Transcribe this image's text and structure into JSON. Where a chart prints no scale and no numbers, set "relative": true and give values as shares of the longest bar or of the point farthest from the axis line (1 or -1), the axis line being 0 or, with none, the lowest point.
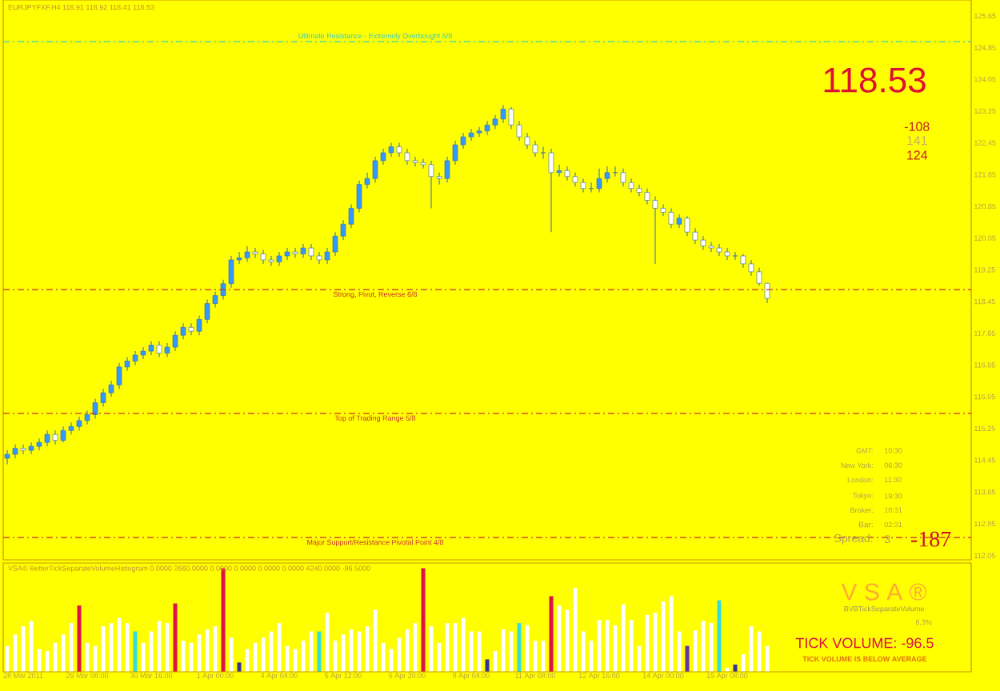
{
  "chart_data": [
    {
      "type": "candlestick",
      "title": "EURJPYFXF,H4 118.91 118.92 118.41 118.53",
      "tick_labels": "y",
      "categories": [
        null,
        null,
        null,
        null,
        null,
        null,
        null,
        null,
        null,
        null,
        null,
        null,
        null,
        null,
        null,
        null,
        null,
        null,
        null,
        null,
        null,
        null,
        null,
        null,
        null,
        null,
        null,
        null,
        null,
        null,
        null,
        null,
        null,
        null,
        null,
        null,
        null,
        null,
        null,
        null,
        null,
        null,
        null,
        null,
        null,
        null,
        null,
        null,
        null,
        null,
        null,
        null,
        null,
        null,
        null,
        null,
        null,
        null,
        null,
        null,
        null,
        null,
        null,
        null,
        null,
        null,
        null,
        null,
        null,
        null,
        null,
        null,
        null,
        null,
        null,
        null,
        null,
        null,
        null,
        null,
        null,
        null,
        null,
        null,
        null,
        null,
        null,
        null,
        null,
        null,
        null,
        null,
        null,
        null,
        null,
        null,
        null,
        null,
        null,
        null,
        null,
        null,
        null,
        null,
        null,
        null,
        null,
        null,
        null,
        null,
        null,
        null,
        null,
        null,
        null,
        null,
        null,
        null,
        null,
        null,
        null
      ],
      "ohlc": [
        [
          114.5,
          114.7,
          114.35,
          114.6
        ],
        [
          114.6,
          114.85,
          114.5,
          114.75
        ],
        [
          114.75,
          114.85,
          114.6,
          114.7
        ],
        [
          114.7,
          114.9,
          114.6,
          114.8
        ],
        [
          114.8,
          115.0,
          114.7,
          114.9
        ],
        [
          114.9,
          115.2,
          114.8,
          115.1
        ],
        [
          115.1,
          115.2,
          114.85,
          114.95
        ],
        [
          114.95,
          115.3,
          114.9,
          115.2
        ],
        [
          115.2,
          115.4,
          115.1,
          115.3
        ],
        [
          115.3,
          115.55,
          115.2,
          115.45
        ],
        [
          115.45,
          115.7,
          115.35,
          115.6
        ],
        [
          115.6,
          116.0,
          115.5,
          115.9
        ],
        [
          115.9,
          116.25,
          115.8,
          116.15
        ],
        [
          116.15,
          116.45,
          116.05,
          116.35
        ],
        [
          116.35,
          116.9,
          116.25,
          116.8
        ],
        [
          116.8,
          117.05,
          116.7,
          116.95
        ],
        [
          116.95,
          117.2,
          116.85,
          117.1
        ],
        [
          117.1,
          117.3,
          117.0,
          117.2
        ],
        [
          117.2,
          117.45,
          117.1,
          117.35
        ],
        [
          117.35,
          117.45,
          117.05,
          117.15
        ],
        [
          117.15,
          117.4,
          117.05,
          117.3
        ],
        [
          117.3,
          117.7,
          117.2,
          117.6
        ],
        [
          117.6,
          117.9,
          117.5,
          117.8
        ],
        [
          117.8,
          117.9,
          117.6,
          117.7
        ],
        [
          117.7,
          118.1,
          117.6,
          118.0
        ],
        [
          118.0,
          118.5,
          117.9,
          118.4
        ],
        [
          118.4,
          118.7,
          118.3,
          118.6
        ],
        [
          118.6,
          119.0,
          118.5,
          118.9
        ],
        [
          118.9,
          119.6,
          118.8,
          119.5
        ],
        [
          119.5,
          119.7,
          119.4,
          119.55
        ],
        [
          119.55,
          119.85,
          119.45,
          119.7
        ],
        [
          119.7,
          119.8,
          119.55,
          119.65
        ],
        [
          119.65,
          119.75,
          119.4,
          119.5
        ],
        [
          119.5,
          119.6,
          119.35,
          119.45
        ],
        [
          119.45,
          119.7,
          119.35,
          119.6
        ],
        [
          119.6,
          119.8,
          119.5,
          119.7
        ],
        [
          119.7,
          119.8,
          119.55,
          119.65
        ],
        [
          119.65,
          119.9,
          119.55,
          119.8
        ],
        [
          119.8,
          119.9,
          119.5,
          119.6
        ],
        [
          119.6,
          119.7,
          119.4,
          119.5
        ],
        [
          119.5,
          119.8,
          119.4,
          119.7
        ],
        [
          119.7,
          120.2,
          119.6,
          120.1
        ],
        [
          120.1,
          120.5,
          120.0,
          120.4
        ],
        [
          120.4,
          120.9,
          120.3,
          120.8
        ],
        [
          120.8,
          121.5,
          120.7,
          121.4
        ],
        [
          121.4,
          121.7,
          121.3,
          121.55
        ],
        [
          121.55,
          122.1,
          121.45,
          122.0
        ],
        [
          122.0,
          122.3,
          121.9,
          122.2
        ],
        [
          122.2,
          122.45,
          122.1,
          122.35
        ],
        [
          122.35,
          122.45,
          122.1,
          122.2
        ],
        [
          122.2,
          122.3,
          121.9,
          122.0
        ],
        [
          122.0,
          122.1,
          121.85,
          121.95
        ],
        [
          121.95,
          122.05,
          121.8,
          121.9
        ],
        [
          121.9,
          122.0,
          120.8,
          121.6
        ],
        [
          121.6,
          121.7,
          121.4,
          121.55
        ],
        [
          121.55,
          122.1,
          121.45,
          122.0
        ],
        [
          122.0,
          122.5,
          121.9,
          122.4
        ],
        [
          122.4,
          122.7,
          122.3,
          122.6
        ],
        [
          122.6,
          122.8,
          122.5,
          122.7
        ],
        [
          122.7,
          122.85,
          122.6,
          122.75
        ],
        [
          122.75,
          123.0,
          122.65,
          122.9
        ],
        [
          122.9,
          123.15,
          122.8,
          123.05
        ],
        [
          123.05,
          123.4,
          122.95,
          123.3
        ],
        [
          123.3,
          123.35,
          122.8,
          122.9
        ],
        [
          122.9,
          123.0,
          122.5,
          122.6
        ],
        [
          122.6,
          122.7,
          122.3,
          122.4
        ],
        [
          122.4,
          122.5,
          122.1,
          122.2
        ],
        [
          122.2,
          122.35,
          122.05,
          122.2
        ],
        [
          122.2,
          122.3,
          120.2,
          121.7
        ],
        [
          121.7,
          121.9,
          121.6,
          121.75
        ],
        [
          121.75,
          121.85,
          121.5,
          121.6
        ],
        [
          121.6,
          121.7,
          121.35,
          121.45
        ],
        [
          121.45,
          121.55,
          121.2,
          121.3
        ],
        [
          121.3,
          121.45,
          121.2,
          121.3
        ],
        [
          121.3,
          121.8,
          121.2,
          121.55
        ],
        [
          121.55,
          121.85,
          121.45,
          121.7
        ],
        [
          121.7,
          121.85,
          121.6,
          121.7
        ],
        [
          121.7,
          121.8,
          121.35,
          121.45
        ],
        [
          121.45,
          121.55,
          121.2,
          121.3
        ],
        [
          121.3,
          121.4,
          121.1,
          121.2
        ],
        [
          121.2,
          121.3,
          120.9,
          121.0
        ],
        [
          121.0,
          121.1,
          119.4,
          120.8
        ],
        [
          120.8,
          120.9,
          120.6,
          120.7
        ],
        [
          120.7,
          120.8,
          120.3,
          120.4
        ],
        [
          120.4,
          120.65,
          120.3,
          120.55
        ],
        [
          120.55,
          120.6,
          120.1,
          120.2
        ],
        [
          120.2,
          120.3,
          119.9,
          120.0
        ],
        [
          120.0,
          120.1,
          119.75,
          119.85
        ],
        [
          119.85,
          119.95,
          119.7,
          119.8
        ],
        [
          119.8,
          119.9,
          119.6,
          119.7
        ],
        [
          119.7,
          119.8,
          119.5,
          119.6
        ],
        [
          119.6,
          119.7,
          119.5,
          119.6
        ],
        [
          119.6,
          119.65,
          119.3,
          119.4
        ],
        [
          119.4,
          119.5,
          119.1,
          119.2
        ],
        [
          119.2,
          119.3,
          118.85,
          118.91
        ],
        [
          118.91,
          118.92,
          118.41,
          118.53
        ],
        null,
        null,
        null,
        null,
        null,
        null,
        null,
        null,
        null,
        null,
        null,
        null,
        null,
        null,
        null,
        null,
        null,
        null,
        null,
        null,
        null,
        null,
        null,
        null,
        null
      ],
      "ylim": [
        111.94,
        126.05
      ],
      "yticks": [
        112.05,
        112.85,
        113.65,
        114.45,
        115.25,
        116.05,
        116.85,
        117.65,
        118.45,
        119.25,
        120.05,
        120.85,
        121.65,
        122.45,
        123.25,
        124.05,
        124.85,
        125.65
      ],
      "ref_lines": [
        {
          "axis": "y",
          "value": 125.0,
          "label": "Ultimate Resistance - Extremely Overbought 8/8",
          "color": "#33cccc",
          "line_style": "dashed"
        },
        {
          "axis": "y",
          "value": 118.75,
          "label": "Strong, Pivot, Reverse 6/8",
          "color": "#cc3333",
          "line_style": "dashed"
        },
        {
          "axis": "y",
          "value": 115.63,
          "label": "Top of Trading Range 5/8",
          "color": "#cc3333",
          "line_style": "dashed"
        },
        {
          "axis": "y",
          "value": 112.5,
          "label": "Major Support/Resistance Pivotal Point 4/8",
          "color": "#cc3333",
          "line_style": "dashed"
        }
      ],
      "annotations": [
        "118.53",
        "-108",
        "141",
        "124",
        "GMT:",
        "10:30",
        "New York:",
        "06:30",
        "London:",
        "11:30",
        "Tokyo:",
        "19:30",
        "Broker:",
        "10:31",
        "Bar:",
        "02:31",
        "Spread:",
        "3",
        "-187"
      ]
    },
    {
      "type": "bar",
      "relative": true,
      "tick_labels": "x",
      "title": "VSA© BetterTickSeparateVolumeHistogram 0.0000 2660.0000 0.0000 0.0000 0.0000 0.0000 4240.0000 -96.5000",
      "categories": [
        null,
        null,
        "28 Mar 2011",
        null,
        null,
        null,
        null,
        null,
        null,
        null,
        "29 Mar 08:00",
        null,
        null,
        null,
        null,
        null,
        null,
        null,
        "30 Mar 16:00",
        null,
        null,
        null,
        null,
        null,
        null,
        null,
        "1 Apr 00:00",
        null,
        null,
        null,
        null,
        null,
        null,
        null,
        "4 Apr 04:00",
        null,
        null,
        null,
        null,
        null,
        null,
        null,
        "5 Apr 12:00",
        null,
        null,
        null,
        null,
        null,
        null,
        null,
        "6 Apr 20:00",
        null,
        null,
        null,
        null,
        null,
        null,
        null,
        "8 Apr 04:00",
        null,
        null,
        null,
        null,
        null,
        null,
        null,
        "11 Apr 08:00",
        null,
        null,
        null,
        null,
        null,
        null,
        null,
        "12 Apr 16:00",
        null,
        null,
        null,
        null,
        null,
        null,
        null,
        "14 Apr 00:00",
        null,
        null,
        null,
        null,
        null,
        null,
        null,
        "15 Apr 08:00",
        null,
        null,
        null,
        null,
        null,
        null,
        null,
        null,
        null,
        null,
        null,
        null,
        null,
        null,
        null,
        null,
        null,
        null,
        null,
        null,
        null,
        null,
        null,
        null,
        null,
        null,
        null,
        null,
        null,
        null
      ],
      "values": [
        0.25,
        0.36,
        0.44,
        0.49,
        0.22,
        0.2,
        0.28,
        0.36,
        0.47,
        0.64,
        0.28,
        0.25,
        0.44,
        0.47,
        0.52,
        0.47,
        0.39,
        0.28,
        0.39,
        0.49,
        0.47,
        0.66,
        0.3,
        0.28,
        0.36,
        0.41,
        0.44,
        1,
        0.33,
        0.09,
        0.22,
        0.28,
        0.33,
        0.39,
        0.47,
        0.25,
        0.22,
        0.3,
        0.39,
        0.39,
        0.57,
        0.3,
        0.36,
        0.41,
        0.39,
        0.44,
        0.6,
        0.28,
        0.22,
        0.33,
        0.41,
        0.47,
        1,
        0.44,
        0.28,
        0.47,
        0.47,
        0.52,
        0.39,
        0.39,
        0.12,
        0.2,
        0.41,
        0.39,
        0.47,
        0.45,
        0.3,
        0.3,
        0.73,
        0.64,
        0.6,
        0.81,
        0.39,
        0.3,
        0.5,
        0.5,
        0.45,
        0.65,
        0.5,
        0.25,
        0.55,
        0.57,
        0.68,
        0.73,
        0.39,
        0.25,
        0.4,
        0.49,
        0.47,
        0.69,
        0.04,
        0.07,
        0.17,
        0.44,
        0.39,
        0.25,
        null,
        null,
        null,
        null,
        null,
        null,
        null,
        null,
        null,
        null,
        null,
        null,
        null,
        null,
        null,
        null,
        null,
        null,
        null,
        null,
        null,
        null,
        null,
        null,
        null
      ],
      "colors": [
        "#ffffff",
        "#ffffff",
        "#ffffff",
        "#ffffff",
        "#ffffff",
        "#ffffff",
        "#ffffff",
        "#ffffff",
        "#ffffff",
        "#dd1144",
        "#ffffff",
        "#ffffff",
        "#ffffff",
        "#ffffff",
        "#ffffff",
        "#ffffff",
        "#33dddd",
        "#ffffff",
        "#ffffff",
        "#ffffff",
        "#ffffff",
        "#dd1144",
        "#ffffff",
        "#ffffff",
        "#ffffff",
        "#ffffff",
        "#ffffff",
        "#dd1144",
        "#ffffff",
        "#333399",
        "#ffffff",
        "#ffffff",
        "#ffffff",
        "#ffffff",
        "#ffffff",
        "#ffffff",
        "#ffffff",
        "#ffffff",
        "#ffffff",
        "#33dddd",
        "#ffffff",
        "#ffffff",
        "#ffffff",
        "#ffffff",
        "#ffffff",
        "#ffffff",
        "#ffffff",
        "#ffffff",
        "#ffffff",
        "#ffffff",
        "#ffffff",
        "#ffffff",
        "#dd1144",
        "#ffffff",
        "#ffffff",
        "#ffffff",
        "#ffffff",
        "#ffffff",
        "#ffffff",
        "#ffffff",
        "#333399",
        "#ffffff",
        "#ffffff",
        "#ffffff",
        "#33dddd",
        "#ffffff",
        "#ffffff",
        "#ffffff",
        "#dd1144",
        "#ffffff",
        "#ffffff",
        "#ffffff",
        "#ffffff",
        "#ffffff",
        "#ffffff",
        "#ffffff",
        "#ffffff",
        "#ffffff",
        "#ffffff",
        "#ffffff",
        "#ffffff",
        "#ffffff",
        "#ffffff",
        "#ffffff",
        "#ffffff",
        "#6633aa",
        "#ffffff",
        "#ffffff",
        "#ffffff",
        "#33dddd",
        "#ffffff",
        "#333399",
        "#ffffff",
        "#ffffff",
        "#ffffff",
        "#ffffff",
        null,
        null,
        null,
        null,
        null,
        null,
        null,
        null,
        null,
        null,
        null,
        null,
        null,
        null,
        null,
        null,
        null,
        null,
        null,
        null,
        null,
        null,
        null,
        null,
        null
      ],
      "annotations": [
        "V S A ®",
        "BVBTickSeparateVolume",
        "6.3%",
        "TICK VOLUME: -96.5",
        "TICK VOLUME IS BELOW AVERAGE"
      ]
    }
  ]
}
